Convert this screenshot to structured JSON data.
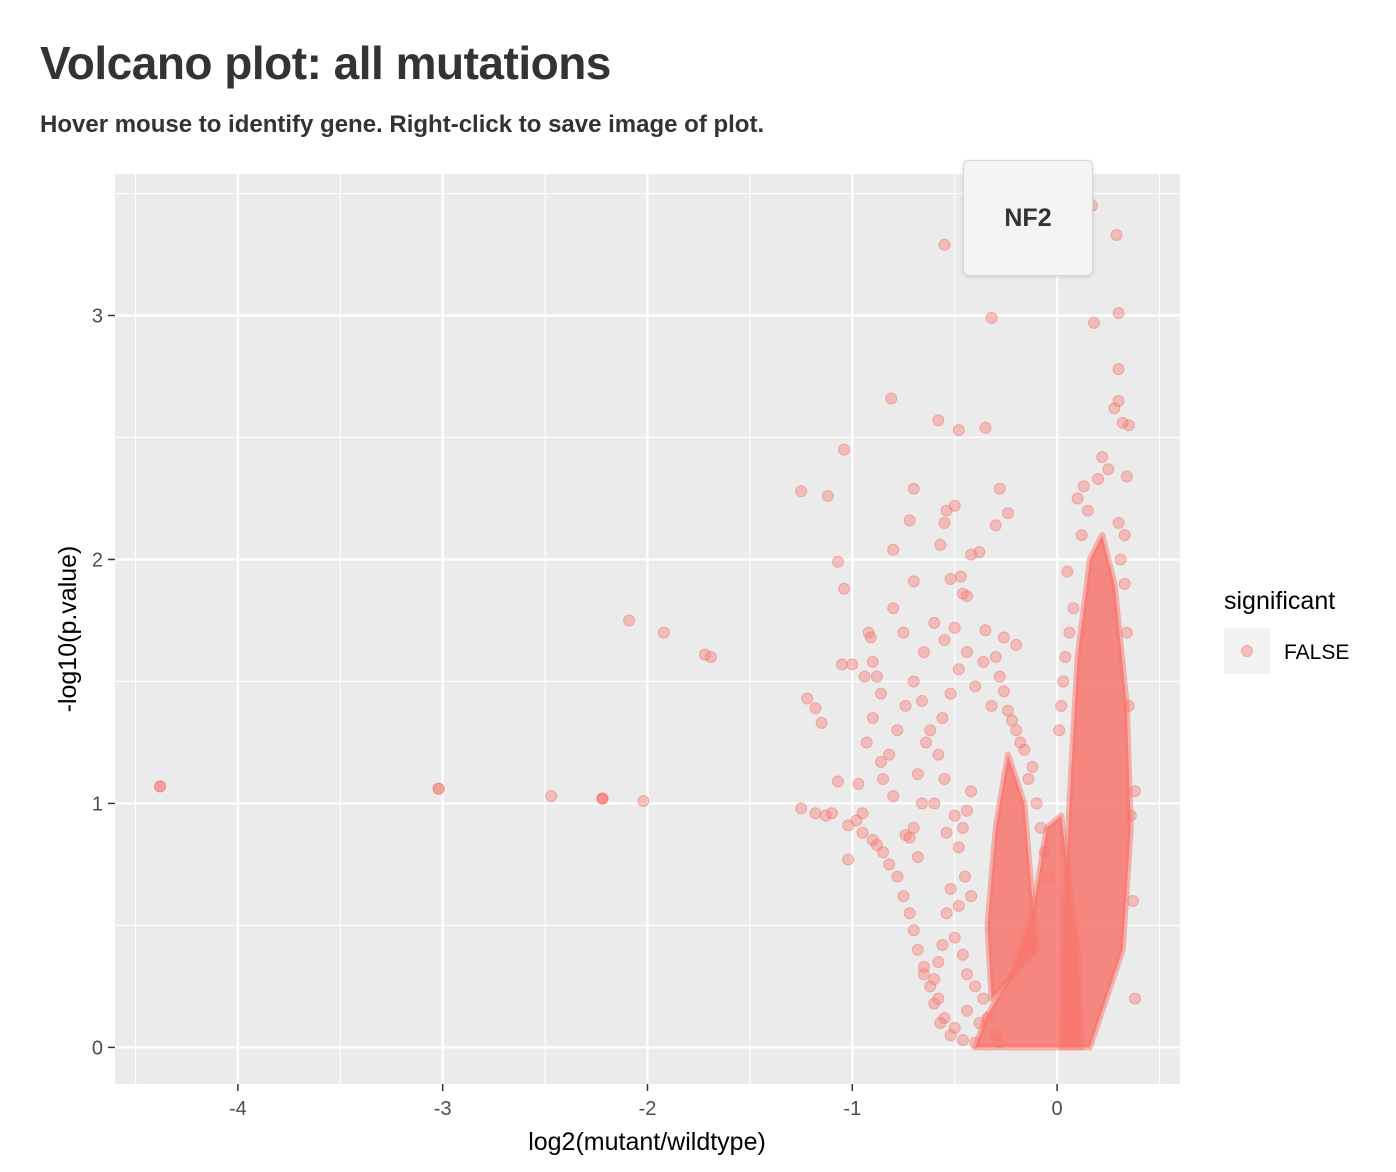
{
  "page": {
    "title": "Volcano plot: all mutations",
    "subtitle": "Hover mouse to identify gene. Right-click to save image of plot."
  },
  "tooltip": {
    "gene": "NF2"
  },
  "chart_data": {
    "type": "scatter",
    "xlabel": "log2(mutant/wildtype)",
    "ylabel": "-log10(p.value)",
    "xlim": [
      -4.6,
      0.6
    ],
    "ylim": [
      -0.15,
      3.58
    ],
    "x_ticks": [
      -4,
      -3,
      -2,
      -1,
      0
    ],
    "y_ticks": [
      0,
      1,
      2,
      3
    ],
    "x_tick_labels": [
      "-4",
      "-3",
      "-2",
      "-1",
      "0"
    ],
    "y_tick_labels": [
      "0",
      "1",
      "2",
      "3"
    ],
    "grid": true,
    "legend": {
      "title": "significant",
      "position": "right",
      "entries": [
        "FALSE"
      ]
    },
    "colors": {
      "FALSE": "#F8766D",
      "panel": "#EBEBEB",
      "grid": "#FFFFFF"
    },
    "point_alpha": 0.4,
    "series": [
      {
        "name": "FALSE",
        "points": [
          [
            -4.38,
            1.07
          ],
          [
            -4.38,
            1.07
          ],
          [
            -3.02,
            1.06
          ],
          [
            -3.02,
            1.06
          ],
          [
            -2.47,
            1.03
          ],
          [
            -2.22,
            1.02
          ],
          [
            -2.22,
            1.02
          ],
          [
            -2.22,
            1.02
          ],
          [
            -2.02,
            1.01
          ],
          [
            -2.09,
            1.75
          ],
          [
            -1.92,
            1.7
          ],
          [
            -1.72,
            1.61
          ],
          [
            -1.69,
            1.6
          ],
          [
            -1.25,
            2.28
          ],
          [
            -1.12,
            2.26
          ],
          [
            -1.04,
            2.45
          ],
          [
            -1.07,
            1.99
          ],
          [
            -1.04,
            1.88
          ],
          [
            -1.22,
            1.43
          ],
          [
            -1.18,
            1.39
          ],
          [
            -1.15,
            1.33
          ],
          [
            -1.25,
            0.98
          ],
          [
            -1.05,
            1.57
          ],
          [
            -1.0,
            1.57
          ],
          [
            -0.92,
            1.7
          ],
          [
            -0.91,
            1.68
          ],
          [
            -0.9,
            1.58
          ],
          [
            -0.88,
            1.52
          ],
          [
            -0.94,
            1.52
          ],
          [
            -0.8,
            1.8
          ],
          [
            -0.81,
            2.66
          ],
          [
            -0.7,
            2.29
          ],
          [
            -0.72,
            2.16
          ],
          [
            -0.55,
            3.29
          ],
          [
            -0.32,
            2.99
          ],
          [
            -0.58,
            2.57
          ],
          [
            -0.48,
            2.53
          ],
          [
            -0.5,
            2.22
          ],
          [
            -0.54,
            2.2
          ],
          [
            -0.35,
            2.54
          ],
          [
            -0.28,
            2.29
          ],
          [
            -0.3,
            2.14
          ],
          [
            -0.24,
            2.19
          ],
          [
            -0.8,
            2.04
          ],
          [
            -0.55,
            2.15
          ],
          [
            -0.57,
            2.06
          ],
          [
            -0.47,
            1.93
          ],
          [
            -0.52,
            1.92
          ],
          [
            -0.42,
            2.02
          ],
          [
            -0.38,
            2.03
          ],
          [
            -0.44,
            1.85
          ],
          [
            -0.46,
            1.86
          ],
          [
            -0.6,
            1.74
          ],
          [
            -0.55,
            1.67
          ],
          [
            -0.5,
            1.72
          ],
          [
            -0.35,
            1.71
          ],
          [
            -0.26,
            1.68
          ],
          [
            -0.2,
            1.65
          ],
          [
            -0.7,
            1.91
          ],
          [
            -0.75,
            1.7
          ],
          [
            -0.65,
            1.62
          ],
          [
            0.17,
            3.45
          ],
          [
            0.29,
            3.33
          ],
          [
            0.3,
            3.01
          ],
          [
            0.18,
            2.97
          ],
          [
            0.3,
            2.78
          ],
          [
            0.3,
            2.65
          ],
          [
            0.28,
            2.62
          ],
          [
            0.35,
            2.55
          ],
          [
            0.32,
            2.56
          ],
          [
            0.22,
            2.42
          ],
          [
            0.25,
            2.37
          ],
          [
            0.2,
            2.33
          ],
          [
            0.13,
            2.3
          ],
          [
            0.1,
            2.25
          ],
          [
            0.15,
            2.2
          ],
          [
            0.12,
            2.1
          ],
          [
            0.3,
            2.15
          ],
          [
            0.34,
            2.34
          ],
          [
            0.33,
            2.1
          ],
          [
            -1.1,
            0.96
          ],
          [
            -1.13,
            0.95
          ],
          [
            -1.18,
            0.96
          ],
          [
            -1.02,
            0.91
          ],
          [
            -0.98,
            0.93
          ],
          [
            -0.95,
            0.88
          ],
          [
            -0.9,
            0.85
          ],
          [
            -0.88,
            0.83
          ],
          [
            -0.85,
            0.8
          ],
          [
            -0.82,
            0.75
          ],
          [
            -0.78,
            0.7
          ],
          [
            -1.02,
            0.77
          ],
          [
            -0.95,
            0.96
          ],
          [
            -1.07,
            1.09
          ],
          [
            -0.97,
            1.08
          ],
          [
            -0.86,
            1.17
          ],
          [
            -0.8,
            1.03
          ],
          [
            -0.74,
            0.87
          ],
          [
            -0.72,
            0.86
          ],
          [
            -0.7,
            0.9
          ],
          [
            -0.68,
            0.78
          ],
          [
            -0.75,
            0.62
          ],
          [
            -0.72,
            0.55
          ],
          [
            -0.7,
            0.48
          ],
          [
            -0.68,
            0.4
          ],
          [
            -0.65,
            0.33
          ],
          [
            -0.62,
            0.25
          ],
          [
            -0.58,
            0.2
          ],
          [
            -0.55,
            0.12
          ],
          [
            -0.52,
            0.05
          ],
          [
            -0.46,
            0.03
          ],
          [
            -0.4,
            0.02
          ],
          [
            -0.65,
            0.3
          ],
          [
            -0.6,
            0.18
          ],
          [
            -0.57,
            0.1
          ],
          [
            -0.5,
            0.08
          ],
          [
            -0.44,
            0.15
          ],
          [
            -0.38,
            0.1
          ],
          [
            -0.66,
            1.42
          ],
          [
            -0.62,
            1.3
          ],
          [
            -0.58,
            1.2
          ],
          [
            -0.55,
            1.1
          ],
          [
            -0.6,
            1.0
          ],
          [
            -0.64,
            1.25
          ],
          [
            -0.56,
            1.35
          ],
          [
            -0.52,
            1.45
          ],
          [
            -0.48,
            1.55
          ],
          [
            -0.44,
            1.62
          ],
          [
            -0.4,
            1.48
          ],
          [
            -0.36,
            1.58
          ],
          [
            -0.32,
            1.4
          ],
          [
            -0.28,
            1.52
          ],
          [
            -0.24,
            1.38
          ],
          [
            -0.2,
            1.3
          ],
          [
            -0.16,
            1.22
          ],
          [
            -0.12,
            1.15
          ],
          [
            -0.3,
            1.6
          ],
          [
            -0.26,
            1.46
          ],
          [
            -0.22,
            1.34
          ],
          [
            -0.18,
            1.25
          ],
          [
            -0.14,
            1.1
          ],
          [
            -0.1,
            1.0
          ],
          [
            -0.08,
            0.9
          ],
          [
            -0.06,
            0.8
          ],
          [
            -0.04,
            0.7
          ],
          [
            -0.78,
            1.3
          ],
          [
            -0.82,
            1.2
          ],
          [
            -0.85,
            1.1
          ],
          [
            -0.74,
            1.4
          ],
          [
            -0.7,
            1.5
          ],
          [
            -0.68,
            1.12
          ],
          [
            -0.66,
            1.0
          ],
          [
            -0.9,
            1.35
          ],
          [
            -0.93,
            1.25
          ],
          [
            -0.86,
            1.45
          ],
          [
            0.05,
            1.95
          ],
          [
            0.08,
            1.8
          ],
          [
            0.06,
            1.7
          ],
          [
            0.04,
            1.6
          ],
          [
            0.03,
            1.5
          ],
          [
            0.02,
            1.4
          ],
          [
            0.01,
            1.3
          ],
          [
            0.38,
            0.2
          ],
          [
            0.37,
            0.6
          ],
          [
            0.36,
            0.95
          ],
          [
            0.38,
            1.05
          ],
          [
            0.35,
            1.4
          ],
          [
            0.34,
            1.7
          ],
          [
            0.33,
            1.9
          ],
          [
            0.31,
            2.0
          ],
          [
            -0.45,
            0.7
          ],
          [
            -0.42,
            0.62
          ],
          [
            -0.48,
            0.58
          ],
          [
            -0.5,
            0.45
          ],
          [
            -0.46,
            0.38
          ],
          [
            -0.44,
            0.3
          ],
          [
            -0.4,
            0.25
          ],
          [
            -0.36,
            0.2
          ],
          [
            -0.34,
            0.12
          ],
          [
            -0.3,
            0.05
          ],
          [
            -0.28,
            0.02
          ],
          [
            -0.52,
            0.65
          ],
          [
            -0.54,
            0.55
          ],
          [
            -0.56,
            0.42
          ],
          [
            -0.58,
            0.35
          ],
          [
            -0.6,
            0.28
          ],
          [
            -0.48,
            0.82
          ],
          [
            -0.46,
            0.9
          ],
          [
            -0.44,
            0.97
          ],
          [
            -0.42,
            1.05
          ],
          [
            -0.5,
            0.95
          ],
          [
            -0.54,
            0.88
          ]
        ]
      }
    ]
  }
}
